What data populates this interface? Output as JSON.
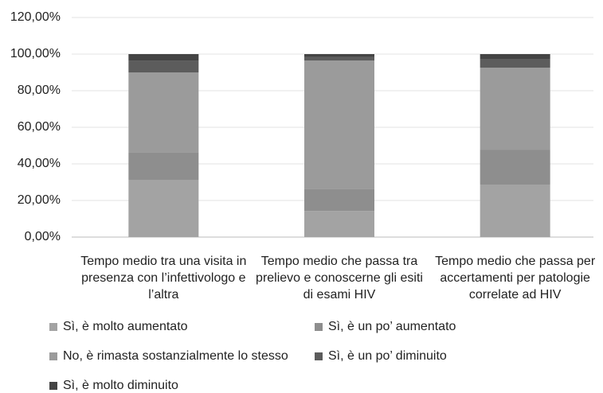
{
  "chart_data": {
    "type": "stacked_bar",
    "categories": [
      "Tempo medio tra una visita in presenza con l’infettivologo e l’altra",
      "Tempo medio che passa tra prelievo e conoscerne gli esiti di esami HIV",
      "Tempo medio che passa per accertamenti per patologie correlate ad HIV"
    ],
    "series": [
      {
        "name": "Sì, è molto aumentato",
        "color": "#a3a3a3",
        "values": [
          31.3,
          14.3,
          28.7
        ]
      },
      {
        "name": "Sì, è un po’ aumentato",
        "color": "#8e8e8e",
        "values": [
          14.8,
          11.8,
          19.1
        ]
      },
      {
        "name": "No, è rimasta sostanzialmente lo stesso",
        "color": "#9b9b9b",
        "values": [
          43.9,
          70.4,
          44.8
        ]
      },
      {
        "name": "Sì, è un po’ diminuito",
        "color": "#5c5c5c",
        "values": [
          6.5,
          2.0,
          4.5
        ]
      },
      {
        "name": "Sì, è molto diminuito",
        "color": "#444444",
        "values": [
          3.5,
          1.5,
          2.9
        ]
      }
    ],
    "ylim": [
      0,
      120
    ],
    "yticks": [
      {
        "value": 0,
        "label": "0,00%"
      },
      {
        "value": 20,
        "label": "20,00%"
      },
      {
        "value": 40,
        "label": "40,00%"
      },
      {
        "value": 60,
        "label": "60,00%"
      },
      {
        "value": 80,
        "label": "80,00%"
      },
      {
        "value": 100,
        "label": "100,00%"
      },
      {
        "value": 120,
        "label": "120,00%"
      }
    ],
    "grid": true
  }
}
